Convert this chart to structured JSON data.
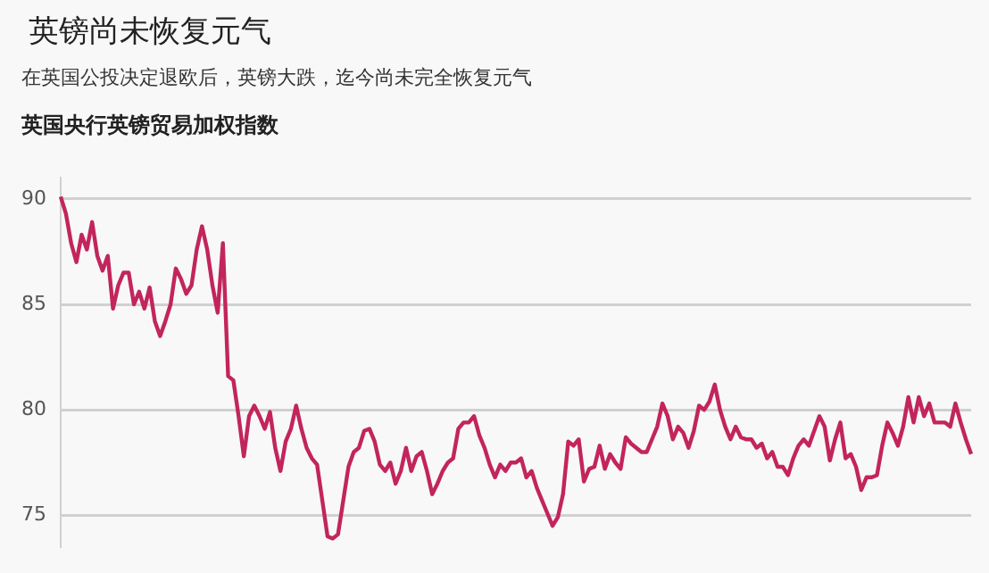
{
  "chart_data": {
    "type": "line",
    "title": "英镑尚未恢复元气",
    "subtitle": "在英国公投决定退欧后，英镑大跌，迄今尚未完全恢复元气",
    "ylabel": "英国央行英镑贸易加权指数",
    "categories": [
      null,
      null,
      null,
      null,
      null,
      null,
      null,
      null,
      null,
      null,
      null,
      null,
      null,
      null,
      null,
      null,
      null,
      null,
      null,
      null,
      null,
      null,
      null,
      null,
      null,
      null,
      null,
      null,
      null,
      null,
      null,
      null,
      null,
      null,
      null,
      null,
      null,
      null,
      null,
      null,
      null,
      null,
      null,
      null,
      null,
      null,
      null,
      null,
      null,
      null,
      null,
      null,
      null,
      null,
      null,
      null,
      null,
      null,
      null,
      null,
      null,
      null,
      null,
      null,
      null,
      null,
      null,
      null,
      null,
      null,
      null,
      null,
      null,
      null,
      null,
      null,
      null,
      null,
      null,
      null,
      null,
      null,
      null,
      null,
      null,
      null,
      null,
      null,
      null,
      null,
      null,
      null,
      null,
      null,
      null,
      null,
      null,
      null,
      null,
      null,
      null,
      null,
      null,
      null,
      null,
      null,
      null,
      null,
      null,
      null,
      null,
      null,
      null,
      null,
      null,
      null,
      null,
      null,
      null,
      null,
      null,
      null,
      null,
      null,
      null,
      null,
      null,
      null,
      null,
      null,
      null,
      null,
      null,
      null,
      null,
      null,
      null,
      null,
      null,
      null,
      null,
      null,
      null,
      null,
      null,
      null,
      null,
      null,
      null,
      null,
      null,
      null,
      null,
      null,
      null,
      null,
      null,
      null,
      null,
      null,
      null,
      null,
      null,
      null,
      null,
      null,
      null,
      null,
      null,
      null,
      null,
      null,
      null,
      null,
      null
    ],
    "series": [
      {
        "color": "#c2255c",
        "values": [
          90.1,
          89.3,
          87.9,
          87.0,
          88.3,
          87.6,
          88.9,
          87.3,
          86.6,
          87.3,
          84.8,
          85.9,
          86.5,
          86.5,
          85.0,
          85.6,
          84.8,
          85.8,
          84.2,
          83.5,
          84.2,
          85.0,
          86.7,
          86.2,
          85.5,
          85.9,
          87.6,
          88.7,
          87.6,
          85.9,
          84.6,
          87.9,
          81.6,
          81.4,
          79.7,
          77.8,
          79.7,
          80.2,
          79.7,
          79.1,
          79.9,
          78.2,
          77.1,
          78.5,
          79.1,
          80.2,
          79.1,
          78.2,
          77.7,
          77.4,
          75.7,
          74.0,
          73.9,
          74.1,
          75.7,
          77.3,
          78.0,
          78.2,
          79.0,
          79.1,
          78.5,
          77.4,
          77.1,
          77.5,
          76.5,
          77.1,
          78.2,
          77.1,
          77.8,
          78.0,
          77.1,
          76.0,
          76.5,
          77.1,
          77.5,
          77.7,
          79.1,
          79.4,
          79.4,
          79.7,
          78.8,
          78.2,
          77.4,
          76.8,
          77.4,
          77.1,
          77.5,
          77.5,
          77.7,
          76.8,
          77.1,
          76.3,
          75.7,
          75.1,
          74.5,
          74.9,
          76.0,
          78.5,
          78.3,
          78.6,
          76.6,
          77.2,
          77.3,
          78.3,
          77.2,
          77.9,
          77.5,
          77.2,
          78.7,
          78.4,
          78.2,
          78.0,
          78.0,
          78.6,
          79.2,
          80.3,
          79.7,
          78.6,
          79.2,
          78.9,
          78.2,
          79.0,
          80.2,
          80.0,
          80.4,
          81.2,
          80.0,
          79.2,
          78.6,
          79.2,
          78.7,
          78.6,
          78.6,
          78.2,
          78.4,
          77.7,
          78.0,
          77.3,
          77.3,
          76.9,
          77.7,
          78.3,
          78.6,
          78.3,
          79.0,
          79.7,
          79.2,
          77.6,
          78.6,
          79.4,
          77.7,
          77.9,
          77.3,
          76.2,
          76.8,
          76.8,
          76.9,
          78.3,
          79.4,
          78.9,
          78.3,
          79.2,
          80.6,
          79.4,
          80.6,
          79.7,
          80.3,
          79.4,
          79.4,
          79.4,
          79.2,
          80.3,
          79.4,
          78.6,
          77.9
        ]
      }
    ],
    "ylim": [
      73.5,
      91
    ],
    "yticks": [
      75,
      80,
      85,
      90
    ],
    "grid": "y",
    "marker": "none",
    "line_style": "solid"
  }
}
